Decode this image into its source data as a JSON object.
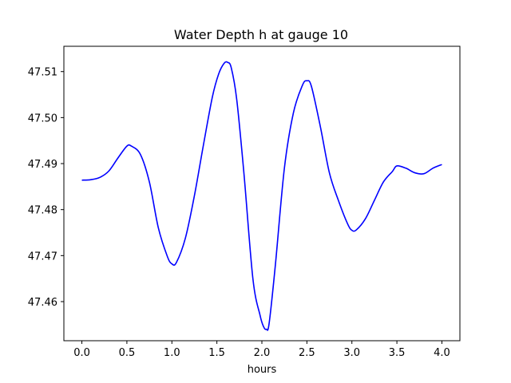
{
  "chart_data": {
    "type": "line",
    "title": "Water Depth h at gauge 10",
    "xlabel": "hours",
    "ylabel": "",
    "xlim": [
      -0.2,
      4.2
    ],
    "ylim": [
      47.4515,
      47.5155
    ],
    "xticks": [
      0.0,
      0.5,
      1.0,
      1.5,
      2.0,
      2.5,
      3.0,
      3.5,
      4.0
    ],
    "xtick_labels": [
      "0.0",
      "0.5",
      "1.0",
      "1.5",
      "2.0",
      "2.5",
      "3.0",
      "3.5",
      "4.0"
    ],
    "yticks": [
      47.46,
      47.47,
      47.48,
      47.49,
      47.5,
      47.51
    ],
    "ytick_labels": [
      "47.46",
      "47.47",
      "47.48",
      "47.49",
      "47.50",
      "47.51"
    ],
    "grid": false,
    "series": [
      {
        "color": "#0000ff",
        "x": [
          0.0,
          0.1,
          0.2,
          0.3,
          0.4,
          0.5,
          0.55,
          0.65,
          0.75,
          0.85,
          0.95,
          1.0,
          1.05,
          1.15,
          1.25,
          1.35,
          1.45,
          1.52,
          1.58,
          1.62,
          1.66,
          1.72,
          1.8,
          1.9,
          1.98,
          2.02,
          2.05,
          2.08,
          2.15,
          2.25,
          2.35,
          2.45,
          2.5,
          2.55,
          2.65,
          2.75,
          2.85,
          2.95,
          3.0,
          3.05,
          3.15,
          3.25,
          3.35,
          3.45,
          3.5,
          3.6,
          3.7,
          3.8,
          3.9,
          4.0
        ],
        "y": [
          47.4864,
          47.4865,
          47.487,
          47.4884,
          47.4912,
          47.4938,
          47.4938,
          47.492,
          47.486,
          47.476,
          47.4698,
          47.4682,
          47.4685,
          47.4738,
          47.483,
          47.494,
          47.5045,
          47.5095,
          47.5118,
          47.512,
          47.5108,
          47.504,
          47.488,
          47.465,
          47.457,
          47.4545,
          47.454,
          47.4552,
          47.468,
          47.489,
          47.501,
          47.507,
          47.508,
          47.5068,
          47.498,
          47.488,
          47.482,
          47.477,
          47.4755,
          47.4756,
          47.478,
          47.482,
          47.486,
          47.4883,
          47.4895,
          47.489,
          47.488,
          47.4878,
          47.489,
          47.4898
        ]
      }
    ]
  }
}
